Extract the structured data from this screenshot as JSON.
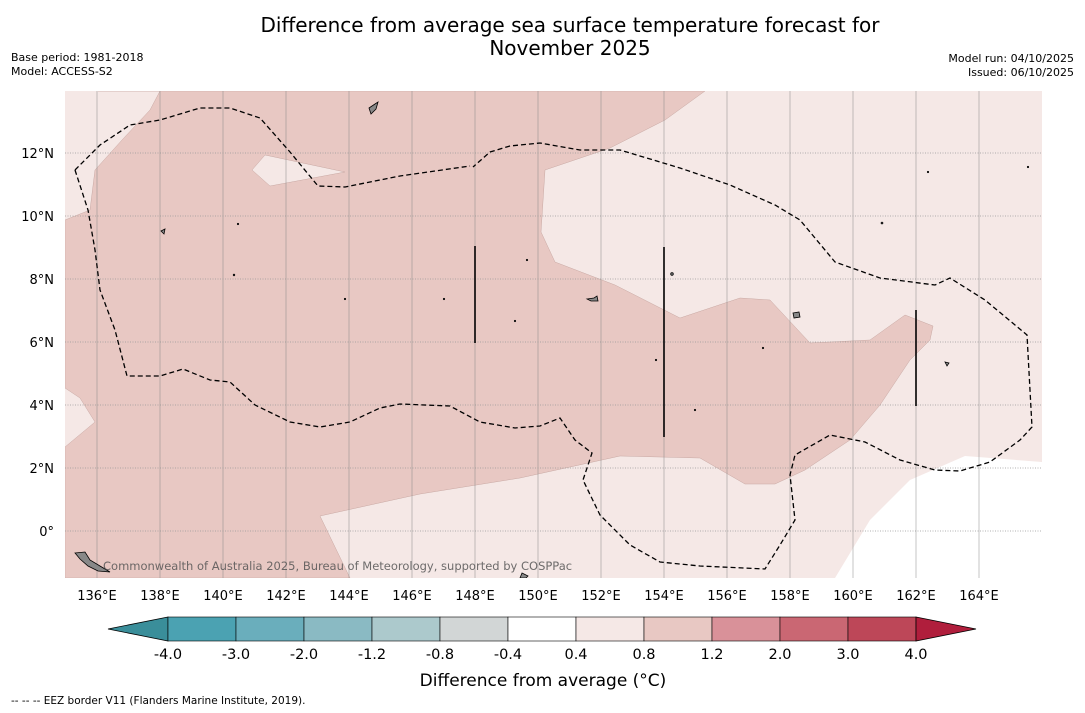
{
  "title_line1": "Difference from average sea surface temperature forecast for",
  "title_line2": "November 2025",
  "base_period": "Base period: 1981-2018",
  "model": "Model: ACCESS-S2",
  "model_run": "Model run: 04/10/2025",
  "issued": "Issued: 06/10/2025",
  "copyright": "Commonwealth of Australia 2025, Bureau of Meteorology, supported by COSPPac",
  "colorbar_label": "Difference from average (°C)",
  "footer_note": "-- -- -- EEZ border V11 (Flanders Marine Institute, 2019).",
  "x_axis_ticks": [
    "136°E",
    "138°E",
    "140°E",
    "142°E",
    "144°E",
    "146°E",
    "148°E",
    "150°E",
    "152°E",
    "154°E",
    "156°E",
    "158°E",
    "160°E",
    "162°E",
    "164°E"
  ],
  "y_axis_ticks": [
    "12°N",
    "10°N",
    "8°N",
    "6°N",
    "4°N",
    "2°N",
    "0°"
  ],
  "colors": {
    "warm_0_4_0_8": "#f5e8e6",
    "warm_0_8_1_2": "#e8c8c3",
    "neutral": "#ffffff"
  },
  "colorbar": {
    "bins": [
      {
        "color": "#3a8e9a",
        "extend": "min"
      },
      {
        "color": "#4ba2b2"
      },
      {
        "color": "#6aaebc"
      },
      {
        "color": "#8abac3"
      },
      {
        "color": "#acc9cc"
      },
      {
        "color": "#d2d6d6"
      },
      {
        "color": "#ffffff"
      },
      {
        "color": "#f5e8e6"
      },
      {
        "color": "#e8c8c3"
      },
      {
        "color": "#d99199"
      },
      {
        "color": "#ca6773"
      },
      {
        "color": "#bd4758"
      },
      {
        "color": "#b01e3c",
        "extend": "max"
      }
    ],
    "tick_labels": [
      "-4.0",
      "-3.0",
      "-2.0",
      "-1.2",
      "-0.8",
      "-0.4",
      "0.4",
      "0.8",
      "1.2",
      "2.0",
      "3.0",
      "4.0"
    ]
  }
}
